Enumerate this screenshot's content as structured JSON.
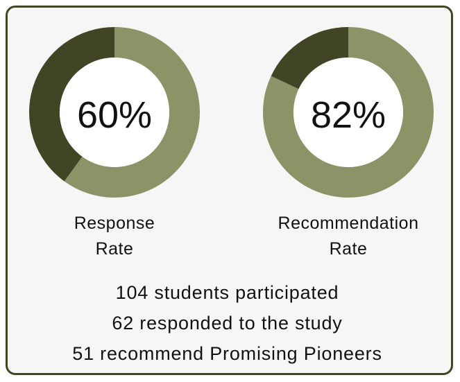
{
  "chart_data": [
    {
      "type": "pie",
      "variant": "donut",
      "value_percent": 60,
      "center_label": "60%",
      "label_lines": [
        "Response",
        "Rate"
      ],
      "colors": {
        "filled": "#8c9366",
        "remaining": "#414526"
      }
    },
    {
      "type": "pie",
      "variant": "donut",
      "value_percent": 82,
      "center_label": "82%",
      "label_lines": [
        "Recommendation",
        "Rate"
      ],
      "colors": {
        "filled": "#8c9366",
        "remaining": "#414526"
      }
    }
  ],
  "stats": [
    "104 students participated",
    "62 responded to the study",
    "51 recommend Promising Pioneers"
  ],
  "colors": {
    "border": "#414526",
    "card_background": "#f6f6f6"
  }
}
